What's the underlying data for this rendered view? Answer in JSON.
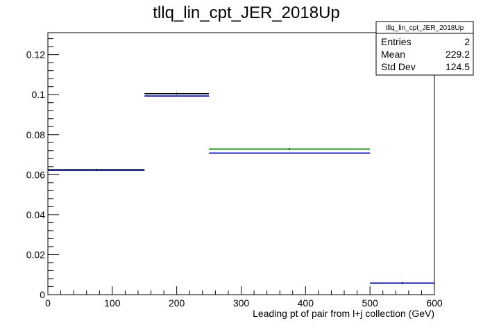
{
  "chart_data": {
    "type": "histogram-step",
    "title": "tllq_lin_cpt_JER_2018Up",
    "xlabel": "Leading pt of pair from l+j collection (GeV)",
    "ylabel": "",
    "xlim": [
      0,
      600
    ],
    "ylim": [
      0,
      0.131
    ],
    "x_ticks": [
      0,
      100,
      200,
      300,
      400,
      500,
      600
    ],
    "x_tick_labels": [
      "0",
      "100",
      "200",
      "300",
      "400",
      "500",
      "600"
    ],
    "y_ticks": [
      0,
      0.02,
      0.04,
      0.06,
      0.08,
      0.1,
      0.12
    ],
    "y_tick_labels": [
      "0",
      "0.02",
      "0.04",
      "0.06",
      "0.08",
      "0.1",
      "0.12"
    ],
    "bin_edges": [
      0,
      150,
      250,
      500,
      600
    ],
    "series": [
      {
        "color": "#000000",
        "values": [
          0.0625,
          0.1005,
          0.0728,
          0.0058
        ]
      },
      {
        "color": "#00a000",
        "values": [
          0.0622,
          0.0993,
          0.0728,
          0.0058
        ]
      },
      {
        "color": "#0000aa",
        "values": [
          0.0622,
          0.0993,
          0.0708,
          0.0058
        ]
      }
    ],
    "stats_box": {
      "title": "tllq_lin_cpt_JER_2018Up",
      "rows": [
        {
          "label": "Entries",
          "value": "2"
        },
        {
          "label": "Mean",
          "value": "229.2"
        },
        {
          "label": "Std Dev",
          "value": "124.5"
        }
      ]
    },
    "grid": false,
    "legend": "none"
  }
}
